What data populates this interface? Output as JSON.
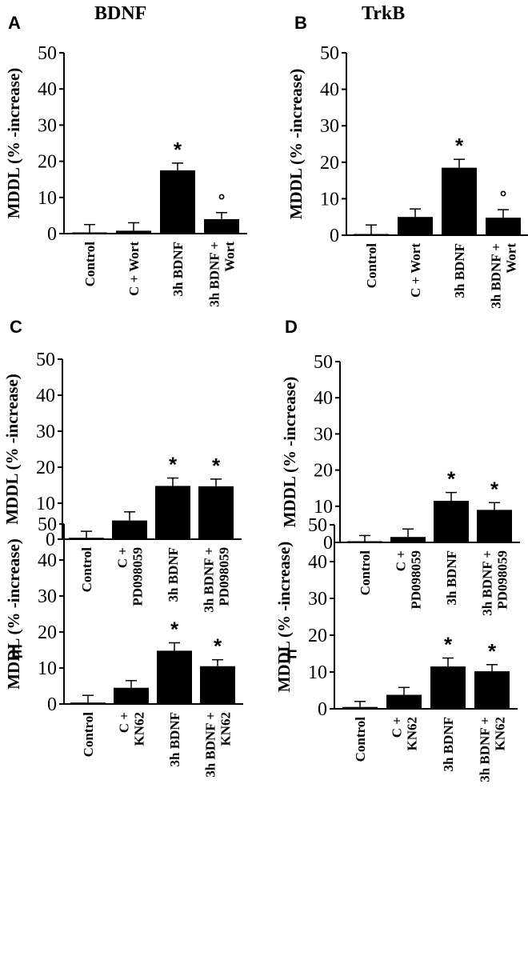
{
  "column_titles": [
    "BDNF",
    "TrkB"
  ],
  "chart_data": [
    {
      "panel": "A",
      "type": "bar",
      "categories": [
        "Control",
        "C + Wort",
        "3h BDNF",
        "3h BDNF +\nWort"
      ],
      "values": [
        0.3,
        0.8,
        17.5,
        4.0
      ],
      "errors": [
        2.2,
        2.2,
        2.0,
        1.8
      ],
      "annotations": [
        "",
        "",
        "*",
        "°"
      ],
      "ylabel": "MDDL (% -increase)",
      "yticks": [
        0,
        10,
        20,
        30,
        40,
        50
      ],
      "ylim": [
        0,
        50
      ]
    },
    {
      "panel": "B",
      "type": "bar",
      "categories": [
        "Control",
        "C + Wort",
        "3h BDNF",
        "3h BDNF +\nWort"
      ],
      "values": [
        0.3,
        5.0,
        18.5,
        4.8
      ],
      "errors": [
        2.5,
        2.2,
        2.3,
        2.2
      ],
      "annotations": [
        "",
        "",
        "*",
        "°"
      ],
      "ylabel": "MDDL (% -increase)",
      "yticks": [
        0,
        10,
        20,
        30,
        40,
        50
      ],
      "ylim": [
        0,
        50
      ]
    },
    {
      "panel": "C",
      "type": "bar",
      "categories": [
        "Control",
        "C +\nPD098059",
        "3h BDNF",
        "3h BDNF +\nPD098059"
      ],
      "values": [
        0.4,
        5.2,
        14.8,
        14.7
      ],
      "errors": [
        1.8,
        2.4,
        2.2,
        2.0
      ],
      "annotations": [
        "",
        "",
        "*",
        "*"
      ],
      "ylabel": "MDDL (% -increase)",
      "yticks": [
        0,
        10,
        20,
        30,
        40,
        50
      ],
      "ylim": [
        0,
        50
      ]
    },
    {
      "panel": "D",
      "type": "bar",
      "categories": [
        "Control",
        "C +\nPD098059",
        "3h BDNF",
        "3h BDNF +\nPD098059"
      ],
      "values": [
        0.3,
        1.5,
        11.5,
        9.0
      ],
      "errors": [
        1.6,
        2.2,
        2.3,
        2.0
      ],
      "annotations": [
        "",
        "",
        "*",
        "*"
      ],
      "ylabel": "MDDL (% -increase)",
      "yticks": [
        0,
        10,
        20,
        30,
        40,
        50
      ],
      "ylim": [
        0,
        50
      ]
    },
    {
      "panel": "E",
      "type": "bar",
      "categories": [
        "Control",
        "C +\nKN62",
        "3h BDNF",
        "3h BDNF +\nKN62"
      ],
      "values": [
        0.4,
        4.5,
        14.8,
        10.5
      ],
      "errors": [
        2.0,
        2.0,
        2.2,
        1.8
      ],
      "annotations": [
        "",
        "",
        "*",
        "*"
      ],
      "ylabel": "MDDL (% -increase)",
      "yticks": [
        0,
        10,
        20,
        30,
        40,
        50
      ],
      "ylim": [
        0,
        50
      ]
    },
    {
      "panel": "F",
      "type": "bar",
      "categories": [
        "Control",
        "C +\nKN62",
        "3h BDNF",
        "3h BDNF +\nKN62"
      ],
      "values": [
        0.5,
        3.8,
        11.5,
        10.2
      ],
      "errors": [
        1.5,
        2.0,
        2.3,
        1.8
      ],
      "annotations": [
        "",
        "",
        "*",
        "*"
      ],
      "ylabel": "MDDL (% -increase)",
      "yticks": [
        0,
        10,
        20,
        30,
        40,
        50
      ],
      "ylim": [
        0,
        50
      ]
    }
  ]
}
